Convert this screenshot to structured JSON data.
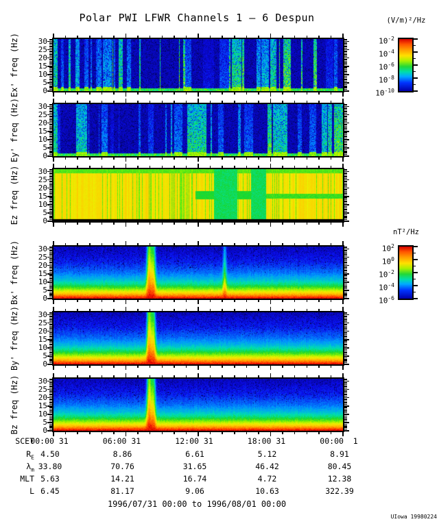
{
  "title": "Polar PWI LFWR Channels 1 — 6 Despun",
  "footer": {
    "range_text": "1996/07/31 00:00 to 1996/08/01 00:00",
    "credit": "UIowa 19980224"
  },
  "colorbars": [
    {
      "units": "(V/m)²/Hz",
      "tick_exponents": [
        -2,
        -4,
        -6,
        -8,
        -10
      ]
    },
    {
      "units": "nT²/Hz",
      "tick_exponents": [
        2,
        0,
        -2,
        -4,
        -6
      ]
    }
  ],
  "colorbar_gradient": [
    "#d40000 0%",
    "#ff5500 10%",
    "#ff9900 20%",
    "#ffe000 32%",
    "#aaf000 42%",
    "#22d838 53%",
    "#00ddaa 63%",
    "#00aaff 72%",
    "#0033ff 84%",
    "#0000a8 100%"
  ],
  "colormap_stops": [
    [
      0.0,
      0,
      0,
      60
    ],
    [
      0.08,
      5,
      5,
      130
    ],
    [
      0.16,
      10,
      10,
      235
    ],
    [
      0.3,
      0,
      150,
      255
    ],
    [
      0.42,
      0,
      225,
      175
    ],
    [
      0.52,
      25,
      215,
      45
    ],
    [
      0.62,
      150,
      245,
      0
    ],
    [
      0.72,
      238,
      238,
      0
    ],
    [
      0.8,
      255,
      200,
      0
    ],
    [
      0.88,
      255,
      130,
      0
    ],
    [
      0.95,
      255,
      55,
      0
    ],
    [
      1.0,
      215,
      0,
      0
    ]
  ],
  "chart_data": {
    "type": "heatmap",
    "title": "Polar PWI LFWR Channels 1 — 6 Despun",
    "x_axis": {
      "label": "SCET",
      "tick_labels": [
        "00:00 31",
        "06:00 31",
        "12:00 31",
        "18:00 31",
        "00:00  1"
      ],
      "hours_range": [
        0,
        24
      ],
      "minor_tick_hours": 1
    },
    "y_axis": {
      "unit": "Hz",
      "ticks": [
        0,
        5,
        10,
        15,
        20,
        25,
        30
      ],
      "lim": [
        0,
        31.5
      ],
      "minor_tick_hz": 1
    },
    "legend_position": "right-colorbars",
    "panels": [
      {
        "id": "Ex",
        "ylabel": "Ex' freq (Hz)",
        "colorbar": 0,
        "pattern": "e-bursts",
        "seed": 11,
        "description": "dark blue background with intermittent vertical cyan-green burst striations across the day; enhanced green band below ~3 Hz; strong green column at start of day"
      },
      {
        "id": "Ey",
        "ylabel": "Ey' freq (Hz)",
        "colorbar": 0,
        "pattern": "e-bursts",
        "seed": 27,
        "description": "same as Ex: sporadic broadband electric bursts (cyan-green) on dark blue background"
      },
      {
        "id": "Ez",
        "ylabel": "Ez freq (Hz)",
        "colorbar": 0,
        "pattern": "ez-band",
        "seed": 43,
        "description": "intense yellow-orange background; green at top edge; green vertical striations; cyan-green low-power regions near 13:00-15:00 and 16:30; narrow green horizontal band near 15 Hz in second half of day; black line at 0 Hz"
      },
      {
        "id": "Bx",
        "ylabel": "Bx' freq (Hz)",
        "colorbar": 1,
        "pattern": "b-gradient",
        "seed": 59,
        "spike_t": 0.33,
        "faint_spike_t": 0.59,
        "description": "red/orange below ~2 Hz grading through yellow, green, cyan to dark blue above ~15 Hz; narrow broadband spike near 07:55 reaching ~25 Hz; faint enhancement near 14:00"
      },
      {
        "id": "By",
        "ylabel": "By' freq (Hz)",
        "colorbar": 1,
        "pattern": "b-gradient",
        "seed": 71,
        "spike_t": 0.33,
        "description": "same falling power-law magnetic spectrum with broadband spike near 07:55"
      },
      {
        "id": "Bz",
        "ylabel": "Bz freq (Hz)",
        "colorbar": 1,
        "pattern": "b-gradient",
        "seed": 89,
        "spike_t": 0.33,
        "description": "same falling power-law magnetic spectrum with broadband spike near 07:55"
      }
    ],
    "ephemeris": {
      "scet_label": "SCET",
      "rows": [
        {
          "label": "R",
          "sub": "E",
          "values": [
            "4.50",
            "8.86",
            "6.61",
            "5.12",
            "8.91"
          ]
        },
        {
          "label": "λ",
          "sub": "m",
          "values": [
            "33.80",
            "70.76",
            "31.65",
            "46.42",
            "80.45"
          ]
        },
        {
          "label": "MLT",
          "sub": "",
          "values": [
            "5.63",
            "14.21",
            "16.74",
            "4.72",
            "12.38"
          ]
        },
        {
          "label": "L",
          "sub": "",
          "values": [
            "6.45",
            "81.17",
            "9.06",
            "10.63",
            "322.39"
          ]
        }
      ]
    }
  }
}
